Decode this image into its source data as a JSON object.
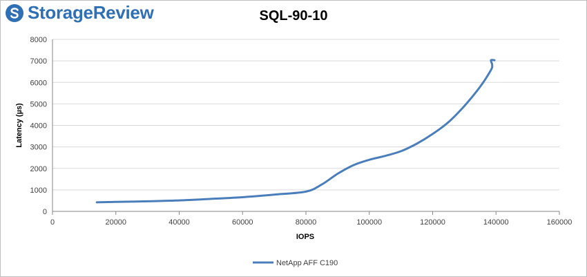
{
  "brand": {
    "name": "StorageReview",
    "accent": "#2f6fb4"
  },
  "chart_data": {
    "type": "line",
    "title": "SQL-90-10",
    "xlabel": "IOPS",
    "ylabel": "Latency (µs)",
    "xlim": [
      0,
      160000
    ],
    "ylim": [
      0,
      8000
    ],
    "xticks": [
      0,
      20000,
      40000,
      60000,
      80000,
      100000,
      120000,
      140000,
      160000
    ],
    "yticks": [
      0,
      1000,
      2000,
      3000,
      4000,
      5000,
      6000,
      7000,
      8000
    ],
    "grid": "horizontal",
    "legend_position": "bottom",
    "series": [
      {
        "name": "NetApp AFF C190",
        "color": "#4a7ebb",
        "x": [
          14000,
          20000,
          30000,
          40000,
          50000,
          60000,
          70000,
          80000,
          85000,
          90000,
          95000,
          100000,
          105000,
          110000,
          115000,
          120000,
          125000,
          130000,
          135000,
          138300,
          138800,
          138400,
          139500
        ],
        "y": [
          420,
          440,
          470,
          510,
          580,
          660,
          780,
          920,
          1250,
          1750,
          2150,
          2400,
          2580,
          2800,
          3150,
          3600,
          4150,
          4900,
          5800,
          6550,
          6800,
          7030,
          7030
        ]
      }
    ]
  }
}
